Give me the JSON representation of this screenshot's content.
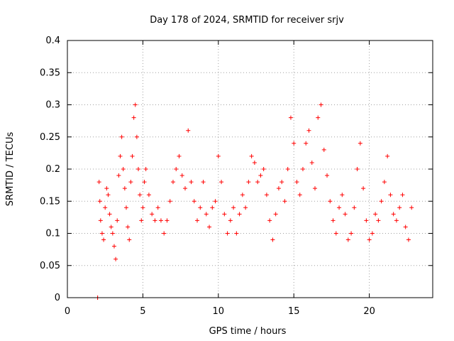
{
  "chart_data": {
    "type": "scatter",
    "title": "Day 178 of 2024, SRMTID for receiver srjv",
    "xlabel": "GPS time / hours",
    "ylabel": "SRMTID / TECUs",
    "xlim": [
      0,
      24.2
    ],
    "ylim": [
      0,
      0.4
    ],
    "xticks": [
      0,
      5,
      10,
      15,
      20
    ],
    "xtick_labels": [
      "0",
      "5",
      "10",
      "15",
      "20"
    ],
    "yticks": [
      0,
      0.05,
      0.1,
      0.15,
      0.2,
      0.25,
      0.3,
      0.35,
      0.4
    ],
    "ytick_labels": [
      "0",
      "0.05",
      "0.1",
      "0.15",
      "0.2",
      "0.25",
      "0.3",
      "0.35",
      "0.4"
    ],
    "grid": true,
    "marker": "plus",
    "color": "#ff0000",
    "x": [
      2.0,
      2.0,
      2.0,
      2.1,
      2.15,
      2.2,
      2.3,
      2.4,
      2.5,
      2.6,
      2.7,
      2.8,
      2.9,
      3.0,
      3.1,
      3.2,
      3.3,
      3.4,
      3.5,
      3.6,
      3.7,
      3.8,
      3.9,
      4.0,
      4.1,
      4.2,
      4.3,
      4.4,
      4.5,
      4.6,
      4.7,
      4.8,
      4.9,
      5.0,
      5.1,
      5.2,
      5.4,
      5.6,
      5.8,
      6.0,
      6.2,
      6.4,
      6.6,
      6.8,
      7.0,
      7.2,
      7.4,
      7.6,
      7.8,
      8.0,
      8.2,
      8.4,
      8.6,
      8.8,
      9.0,
      9.2,
      9.4,
      9.6,
      9.8,
      10.0,
      10.2,
      10.4,
      10.6,
      10.8,
      11.0,
      11.2,
      11.4,
      11.6,
      11.8,
      12.0,
      12.2,
      12.4,
      12.6,
      12.8,
      13.0,
      13.2,
      13.4,
      13.6,
      13.8,
      14.0,
      14.2,
      14.4,
      14.6,
      14.8,
      15.0,
      15.2,
      15.4,
      15.6,
      15.8,
      16.0,
      16.2,
      16.4,
      16.6,
      16.8,
      17.0,
      17.2,
      17.4,
      17.6,
      17.8,
      18.0,
      18.2,
      18.4,
      18.6,
      18.8,
      19.0,
      19.2,
      19.4,
      19.6,
      19.8,
      20.0,
      20.2,
      20.4,
      20.6,
      20.8,
      21.0,
      21.2,
      21.4,
      21.6,
      21.8,
      22.0,
      22.2,
      22.4,
      22.6,
      22.8
    ],
    "y": [
      0.0,
      0.0,
      0.0,
      0.18,
      0.15,
      0.12,
      0.1,
      0.09,
      0.14,
      0.17,
      0.16,
      0.13,
      0.11,
      0.1,
      0.08,
      0.06,
      0.12,
      0.19,
      0.22,
      0.25,
      0.2,
      0.17,
      0.14,
      0.11,
      0.09,
      0.18,
      0.22,
      0.28,
      0.3,
      0.25,
      0.2,
      0.16,
      0.12,
      0.14,
      0.18,
      0.2,
      0.16,
      0.13,
      0.12,
      0.14,
      0.12,
      0.1,
      0.12,
      0.15,
      0.18,
      0.2,
      0.22,
      0.19,
      0.17,
      0.26,
      0.18,
      0.15,
      0.12,
      0.14,
      0.18,
      0.13,
      0.11,
      0.14,
      0.15,
      0.22,
      0.18,
      0.13,
      0.1,
      0.12,
      0.14,
      0.1,
      0.13,
      0.16,
      0.14,
      0.18,
      0.22,
      0.21,
      0.18,
      0.19,
      0.2,
      0.16,
      0.12,
      0.09,
      0.13,
      0.17,
      0.18,
      0.15,
      0.2,
      0.28,
      0.24,
      0.18,
      0.16,
      0.2,
      0.24,
      0.26,
      0.21,
      0.17,
      0.28,
      0.3,
      0.23,
      0.19,
      0.15,
      0.12,
      0.1,
      0.14,
      0.16,
      0.13,
      0.09,
      0.1,
      0.14,
      0.2,
      0.24,
      0.17,
      0.12,
      0.09,
      0.1,
      0.13,
      0.12,
      0.15,
      0.18,
      0.22,
      0.16,
      0.13,
      0.12,
      0.14,
      0.16,
      0.11,
      0.09,
      0.14
    ]
  }
}
